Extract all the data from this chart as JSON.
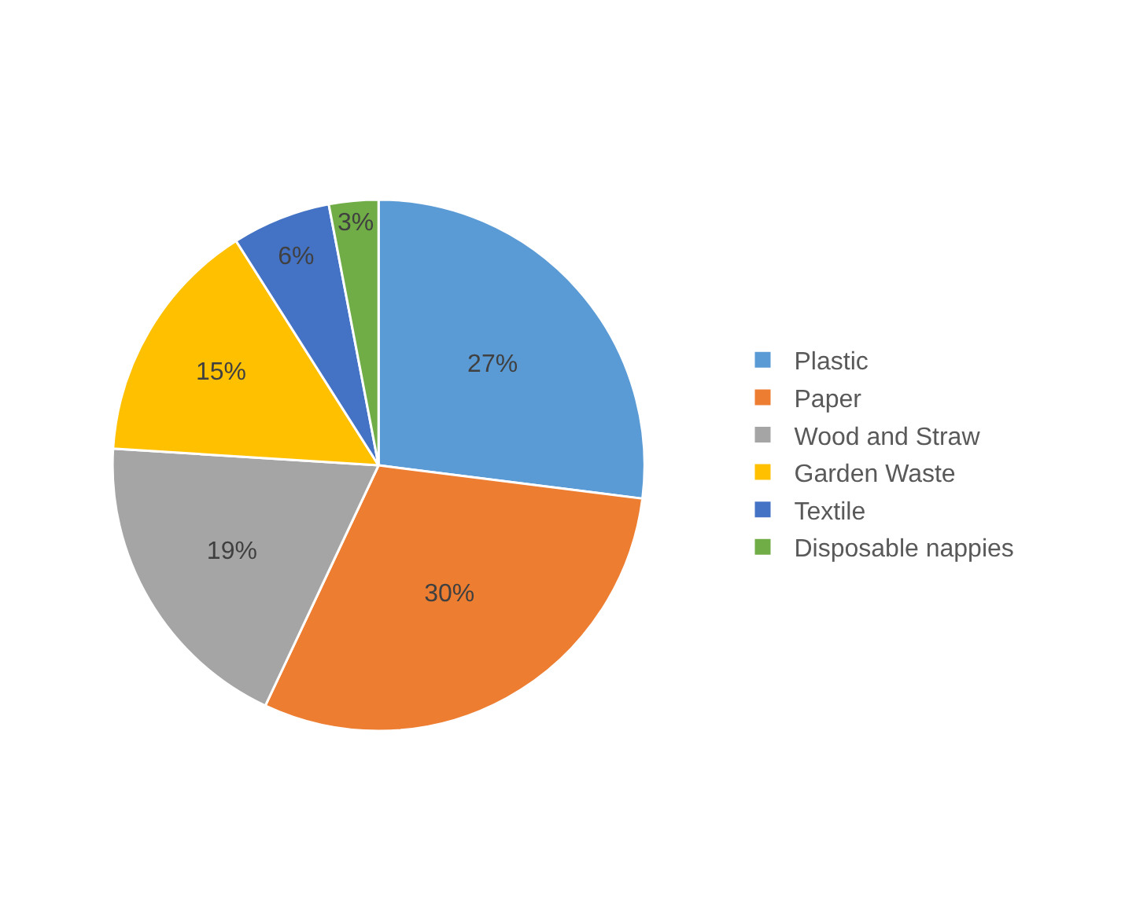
{
  "chart_data": {
    "type": "pie",
    "categories": [
      "Plastic",
      "Paper",
      "Wood and Straw",
      "Garden Waste",
      "Textile",
      "Disposable nappies"
    ],
    "values": [
      27,
      30,
      19,
      15,
      6,
      3
    ],
    "value_labels": [
      "27%",
      "30%",
      "19%",
      "15%",
      "6%",
      "3%"
    ],
    "colors": [
      "#5b9bd5",
      "#ed7d31",
      "#a5a5a5",
      "#ffc000",
      "#4472c4",
      "#70ad47"
    ],
    "legend": "right"
  }
}
